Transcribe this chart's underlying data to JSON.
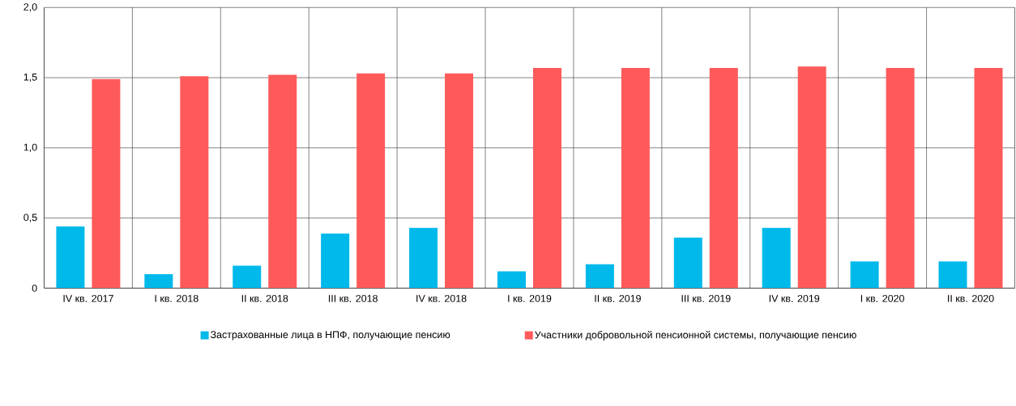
{
  "chart_data": {
    "type": "bar",
    "categories": [
      "IV кв. 2017",
      "I кв. 2018",
      "II кв. 2018",
      "III кв. 2018",
      "IV кв. 2018",
      "I кв. 2019",
      "II кв. 2019",
      "III кв. 2019",
      "IV кв. 2019",
      "I кв. 2020",
      "II кв. 2020"
    ],
    "series": [
      {
        "name": "Застрахованные лица в НПФ, получающие пенсию",
        "color": "#00b9eb",
        "values": [
          0.44,
          0.1,
          0.16,
          0.39,
          0.43,
          0.12,
          0.17,
          0.36,
          0.43,
          0.19,
          0.19
        ]
      },
      {
        "name": "Участники добровольной пенсионной системы, получающие пенсию",
        "color": "#ff5a5a",
        "values": [
          1.49,
          1.51,
          1.52,
          1.53,
          1.53,
          1.57,
          1.57,
          1.57,
          1.58,
          1.57,
          1.57
        ]
      }
    ],
    "ylim": [
      0,
      2
    ],
    "yticks": [
      0,
      {
        "value": 0.5,
        "label": "0,5"
      },
      {
        "value": 1.0,
        "label": "1,0"
      },
      {
        "value": 1.5,
        "label": "1,5"
      },
      {
        "value": 2.0,
        "label": "2,0"
      }
    ],
    "grid": true,
    "legend": "bottom"
  }
}
